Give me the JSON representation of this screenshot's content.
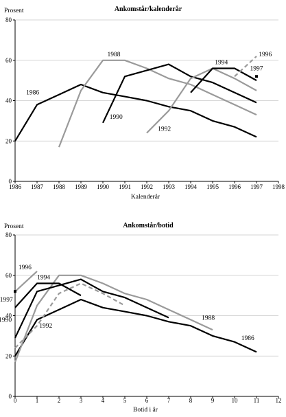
{
  "chart_data": [
    {
      "type": "line",
      "title": "Ankomstår/kalenderår",
      "ylabel": "Prosent",
      "xlabel": "Kalenderår",
      "ylim": [
        0,
        80
      ],
      "xlim": [
        1986,
        1998
      ],
      "yticks": [
        0,
        20,
        40,
        60,
        80
      ],
      "xticks": [
        1986,
        1987,
        1988,
        1989,
        1990,
        1991,
        1992,
        1993,
        1994,
        1995,
        1996,
        1997,
        1998
      ],
      "grid": "horizontal",
      "series": [
        {
          "name": "1986",
          "color": "#000000",
          "dashed": false,
          "x": [
            1986,
            1987,
            1988,
            1989,
            1990,
            1991,
            1992,
            1993,
            1994,
            1995,
            1996,
            1997
          ],
          "y": [
            20,
            38,
            43,
            48,
            44,
            42,
            40,
            37,
            35,
            30,
            27,
            22
          ]
        },
        {
          "name": "1988",
          "color": "#9a9a9a",
          "dashed": false,
          "x": [
            1988,
            1989,
            1990,
            1991,
            1992,
            1993,
            1994,
            1995,
            1996,
            1997
          ],
          "y": [
            17,
            45,
            60,
            60,
            56,
            51,
            48,
            43,
            38,
            33
          ]
        },
        {
          "name": "1990",
          "color": "#000000",
          "dashed": false,
          "x": [
            1990,
            1991,
            1992,
            1993,
            1994,
            1995,
            1996,
            1997
          ],
          "y": [
            29,
            52,
            55,
            58,
            52,
            49,
            44,
            39
          ]
        },
        {
          "name": "1992",
          "color": "#9a9a9a",
          "dashed": false,
          "x": [
            1992,
            1993,
            1994,
            1995,
            1996,
            1997
          ],
          "y": [
            24,
            35,
            51,
            56,
            51,
            45
          ]
        },
        {
          "name": "1994",
          "color": "#000000",
          "dashed": false,
          "x": [
            1994,
            1995,
            1996,
            1997
          ],
          "y": [
            44,
            56,
            56,
            50
          ]
        },
        {
          "name": "1996",
          "color": "#9a9a9a",
          "dashed": true,
          "x": [
            1996,
            1997
          ],
          "y": [
            52,
            62
          ]
        },
        {
          "name": "1997",
          "color": "#000000",
          "dashed": false,
          "marker": true,
          "x": [
            1997
          ],
          "y": [
            52
          ]
        }
      ],
      "label_positions": [
        {
          "name": "1986",
          "x": 1986.8,
          "y": 43
        },
        {
          "name": "1988",
          "x": 1990.5,
          "y": 62
        },
        {
          "name": "1990",
          "x": 1990.6,
          "y": 31
        },
        {
          "name": "1992",
          "x": 1992.8,
          "y": 25
        },
        {
          "name": "1994",
          "x": 1995.4,
          "y": 58
        },
        {
          "name": "1996",
          "x": 1997.4,
          "y": 62
        },
        {
          "name": "1997",
          "x": 1997.0,
          "y": 55
        }
      ]
    },
    {
      "type": "line",
      "title": "Ankomstår/botid",
      "ylabel": "Prosent",
      "xlabel": "Botid i år",
      "ylim": [
        0,
        80
      ],
      "xlim": [
        0,
        12
      ],
      "yticks": [
        0,
        20,
        40,
        60,
        80
      ],
      "xticks": [
        0,
        1,
        2,
        3,
        4,
        5,
        6,
        7,
        8,
        9,
        10,
        11,
        12
      ],
      "grid": "horizontal",
      "series": [
        {
          "name": "1986",
          "color": "#000000",
          "dashed": false,
          "x": [
            0,
            1,
            2,
            3,
            4,
            5,
            6,
            7,
            8,
            9,
            10,
            11
          ],
          "y": [
            20,
            38,
            43,
            48,
            44,
            42,
            40,
            37,
            35,
            30,
            27,
            22
          ]
        },
        {
          "name": "1988",
          "color": "#9a9a9a",
          "dashed": false,
          "x": [
            0,
            1,
            2,
            3,
            4,
            5,
            6,
            7,
            8,
            9
          ],
          "y": [
            17,
            45,
            60,
            60,
            56,
            51,
            48,
            43,
            38,
            33
          ]
        },
        {
          "name": "1990",
          "color": "#000000",
          "dashed": false,
          "x": [
            0,
            1,
            2,
            3,
            4,
            5,
            6,
            7
          ],
          "y": [
            29,
            52,
            55,
            58,
            52,
            49,
            44,
            39
          ]
        },
        {
          "name": "1992",
          "color": "#9a9a9a",
          "dashed": true,
          "x": [
            0,
            1,
            2,
            3,
            4,
            5
          ],
          "y": [
            24,
            35,
            51,
            56,
            51,
            45
          ]
        },
        {
          "name": "1994",
          "color": "#000000",
          "dashed": false,
          "x": [
            0,
            1,
            2,
            3
          ],
          "y": [
            44,
            56,
            56,
            50
          ]
        },
        {
          "name": "1996",
          "color": "#9a9a9a",
          "dashed": false,
          "x": [
            0,
            1
          ],
          "y": [
            52,
            62
          ]
        },
        {
          "name": "1997",
          "color": "#000000",
          "dashed": false,
          "marker": true,
          "x": [
            0
          ],
          "y": [
            52
          ]
        }
      ],
      "label_positions": [
        {
          "name": "1986",
          "x": 10.6,
          "y": 28
        },
        {
          "name": "1988",
          "x": 8.8,
          "y": 38
        },
        {
          "name": "1990",
          "x": -0.45,
          "y": 37
        },
        {
          "name": "1992",
          "x": 1.4,
          "y": 34
        },
        {
          "name": "1994",
          "x": 1.3,
          "y": 58
        },
        {
          "name": "1996",
          "x": 0.45,
          "y": 63
        },
        {
          "name": "1997",
          "x": -0.4,
          "y": 47
        }
      ]
    }
  ]
}
